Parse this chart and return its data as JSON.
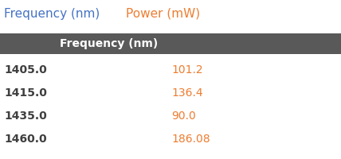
{
  "title_part1": "Frequency (nm)",
  "title_part2": "Power (mW)",
  "title_color_1": "#4472c4",
  "title_color_2": "#ed7d31",
  "header_text": "Frequency (nm)",
  "header_bg": "#595959",
  "header_text_color": "#ffffff",
  "bg_color": "#ffffff",
  "rows": [
    {
      "freq": "1405.0",
      "power": "101.2"
    },
    {
      "freq": "1415.0",
      "power": "136.4"
    },
    {
      "freq": "1435.0",
      "power": "90.0"
    },
    {
      "freq": "1460.0",
      "power": "186.08"
    }
  ],
  "freq_color": "#3f3f3f",
  "power_color": "#ed7d31",
  "figsize": [
    4.28,
    2.0
  ],
  "dpi": 100
}
